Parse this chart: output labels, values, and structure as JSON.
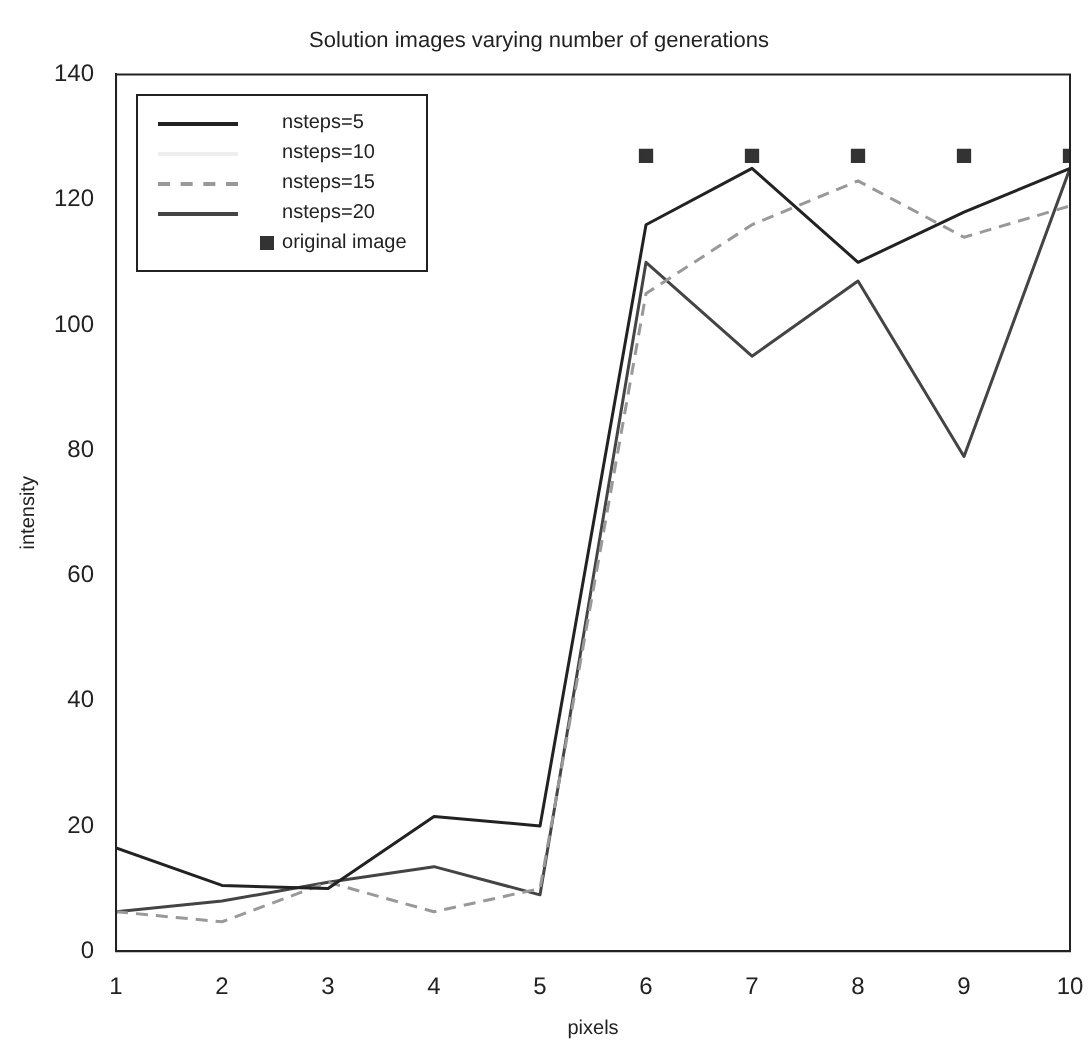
{
  "chart_data": {
    "type": "line",
    "title": "Solution images varying number of generations",
    "xlabel": "pixels",
    "ylabel": "intensity",
    "x": [
      1,
      2,
      3,
      4,
      5,
      6,
      7,
      8,
      9,
      10
    ],
    "xlim": [
      1,
      10
    ],
    "xticks": [
      1,
      2,
      3,
      4,
      5,
      6,
      7,
      8,
      9,
      10
    ],
    "ylim": [
      0,
      140
    ],
    "yticks": [
      0,
      20,
      40,
      60,
      80,
      100,
      120,
      140
    ],
    "grid": false,
    "legend": "top left",
    "marker": "none",
    "series": [
      {
        "name": "nsteps=5",
        "color": "#222222",
        "line_style": "solid",
        "values": [
          16.5,
          10.5,
          10,
          21.5,
          20,
          116,
          125,
          110,
          118,
          125
        ]
      },
      {
        "name": "nsteps=10",
        "color": "#eeeeee",
        "line_style": "solid",
        "values": [
          null,
          null,
          null,
          null,
          null,
          null,
          null,
          null,
          null,
          null
        ]
      },
      {
        "name": "nsteps=15",
        "color": "#999999",
        "line_style": "dashed",
        "values": [
          6.3,
          4.7,
          11,
          6.3,
          10,
          105,
          116,
          123,
          114,
          119
        ]
      },
      {
        "name": "nsteps=20",
        "color": "#444444",
        "line_style": "solid",
        "values": [
          6.3,
          8,
          11,
          13.5,
          9,
          110,
          95,
          107,
          79,
          125
        ]
      },
      {
        "name": "original image",
        "type": "scatter",
        "marker": "square",
        "color": "#333333",
        "x": [
          6,
          7,
          8,
          9,
          10
        ],
        "values": [
          127,
          127,
          127,
          127,
          127
        ]
      }
    ]
  }
}
